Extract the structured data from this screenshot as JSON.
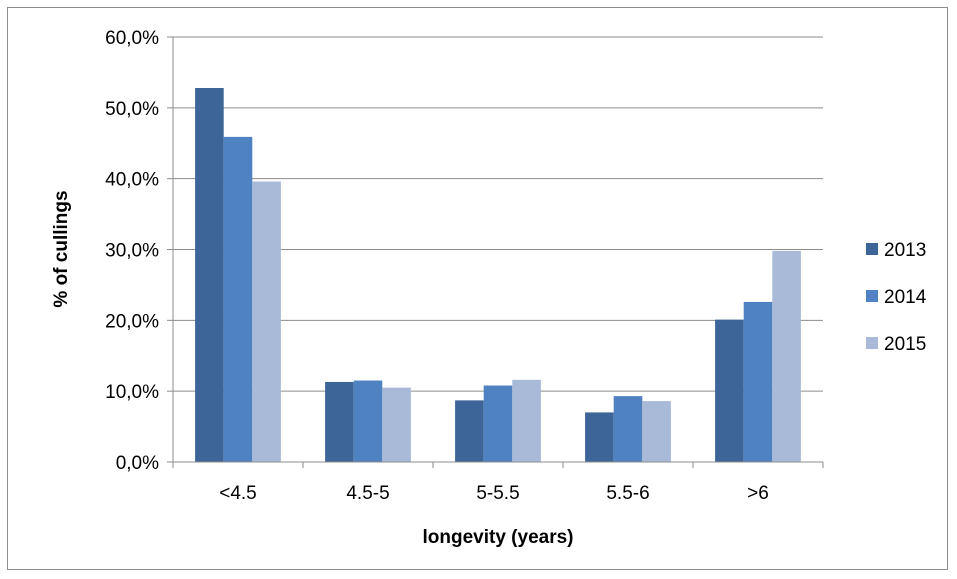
{
  "chart_data": {
    "type": "bar",
    "title": "",
    "xlabel": "longevity (years)",
    "ylabel": "% of cullings",
    "categories": [
      "<4.5",
      "4.5-5",
      "5-5.5",
      "5.5-6",
      ">6"
    ],
    "series": [
      {
        "name": "2013",
        "color": "#3d6598",
        "values": [
          52.8,
          11.3,
          8.7,
          7.0,
          20.1
        ]
      },
      {
        "name": "2014",
        "color": "#4f82c0",
        "values": [
          45.9,
          11.5,
          10.8,
          9.3,
          22.6
        ]
      },
      {
        "name": "2015",
        "color": "#a9bad9",
        "values": [
          39.6,
          10.5,
          11.6,
          8.6,
          29.8
        ]
      }
    ],
    "ylim": [
      0,
      60
    ],
    "yticks": [
      0,
      10,
      20,
      30,
      40,
      50,
      60
    ],
    "ytick_labels": [
      "0,0%",
      "10,0%",
      "20,0%",
      "30,0%",
      "40,0%",
      "50,0%",
      "60,0%"
    ],
    "grid": true,
    "legend_position": "right",
    "gridline_color": "#8c8c8c"
  }
}
